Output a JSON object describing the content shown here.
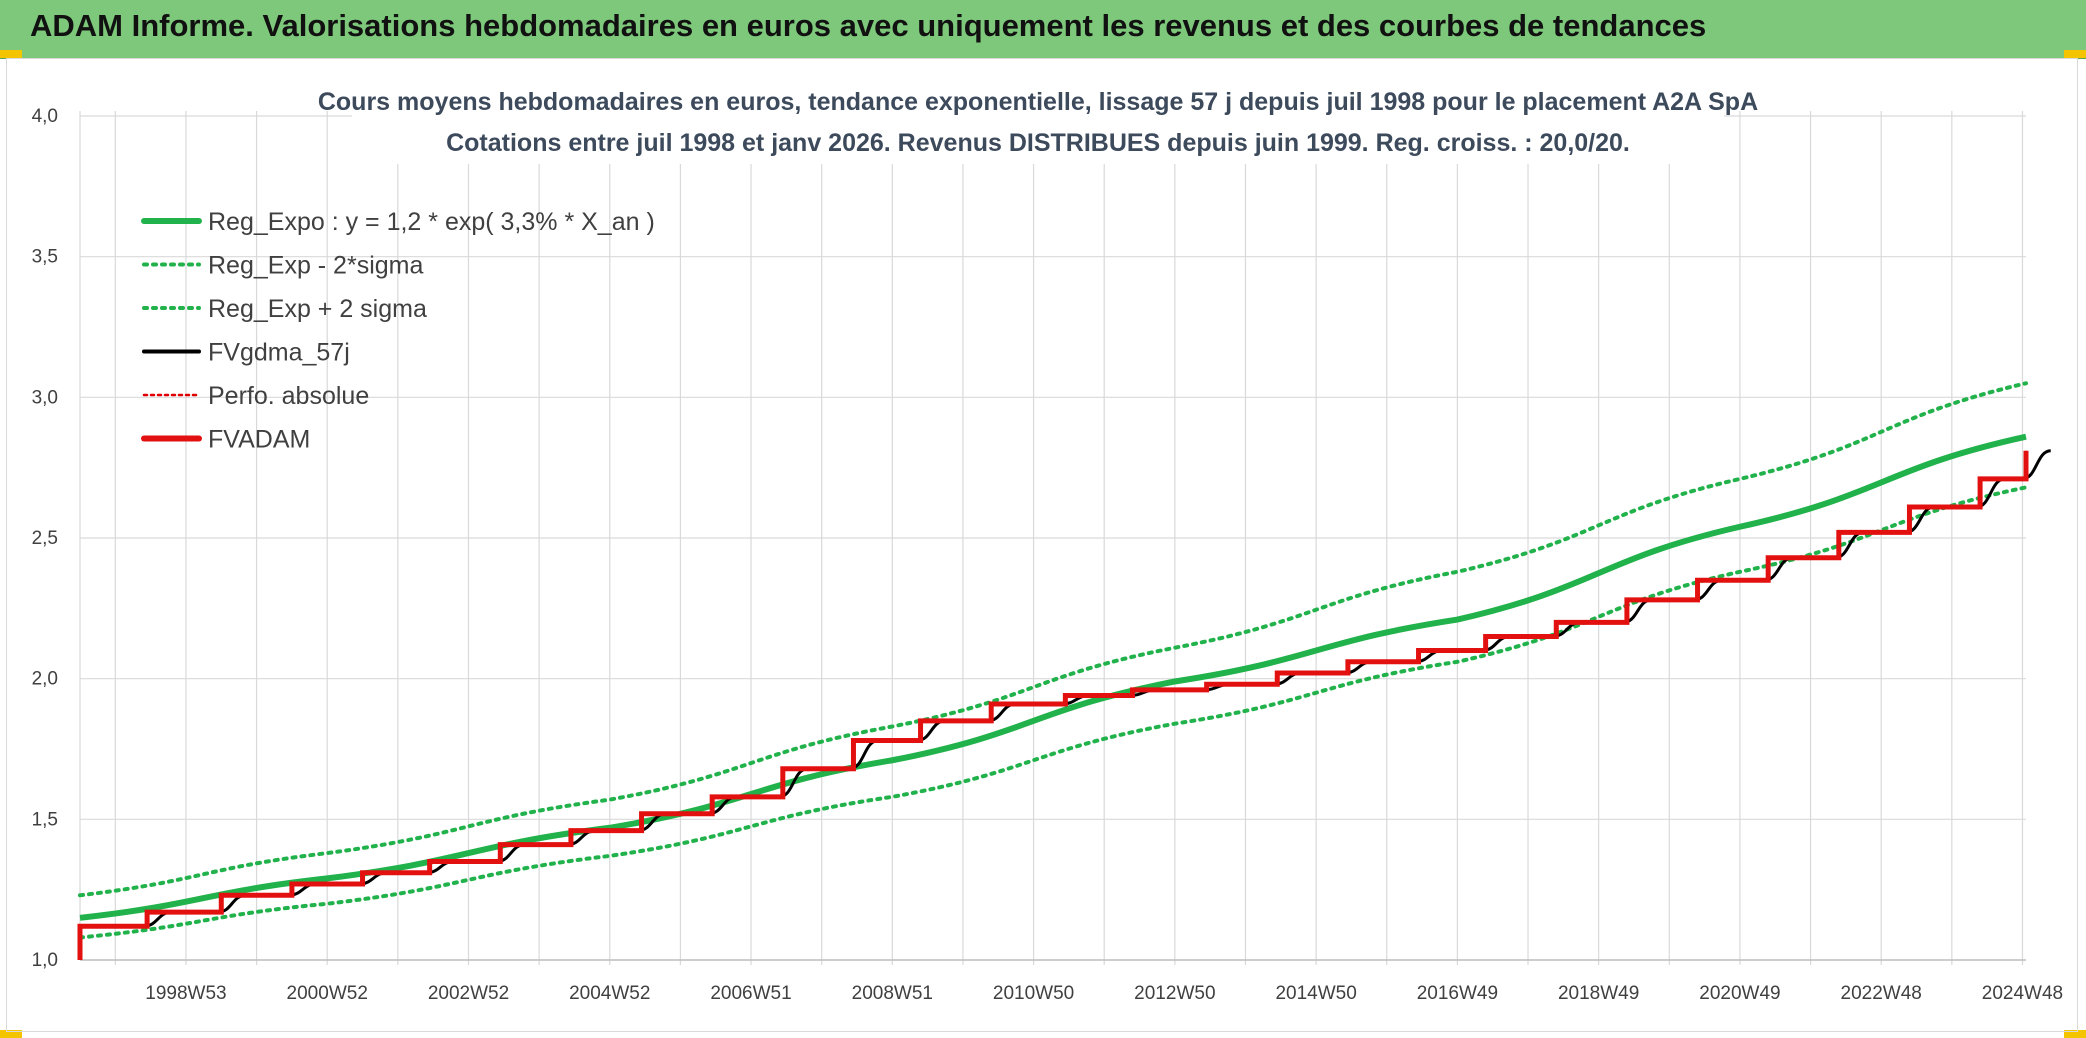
{
  "banner": {
    "title": "ADAM Informe. Valorisations hebdomadaires en euros avec uniquement les revenus et des courbes de tendances"
  },
  "colors": {
    "banner_bg": "#7dc87a",
    "reg_expo": "#21b24b",
    "fvgdma": "#000000",
    "perfo": "#e00000",
    "fvadam": "#e31010",
    "grid": "#d9d9d9",
    "title_text": "#3c4a5c"
  },
  "chart_data": {
    "type": "line",
    "title_line1": "Cours moyens hebdomadaires en euros, tendance exponentielle, lissage 57 j depuis juil 1998 pour le placement A2A SpA",
    "title_line2": "Cotations entre juil 1998 et janv 2026. Revenus DISTRIBUES depuis juin 1999. Reg. croiss. : 20,0/20.",
    "ylim": [
      1.0,
      4.0
    ],
    "yticks": [
      "1,0",
      "1,5",
      "2,0",
      "2,5",
      "3,0",
      "3,5",
      "4,0"
    ],
    "x_tick_labels": [
      "1998W53",
      "2000W52",
      "2002W52",
      "2004W52",
      "2006W51",
      "2008W51",
      "2010W50",
      "2012W50",
      "2014W50",
      "2016W49",
      "2018W49",
      "2020W49",
      "2022W48",
      "2024W48"
    ],
    "x_range_years": [
      1998.5,
      2026.05
    ],
    "grid": true,
    "legend_position": "top-left",
    "legend": [
      {
        "label": "Reg_Expo : y = 1,2 * exp( 3,3% *  X_an )",
        "style": "solid-thick",
        "color": "#21b24b"
      },
      {
        "label": "Reg_Exp - 2*sigma",
        "style": "dotted",
        "color": "#21b24b"
      },
      {
        "label": "Reg_Exp + 2 sigma",
        "style": "dotted",
        "color": "#21b24b"
      },
      {
        "label": "FVgdma_57j",
        "style": "solid",
        "color": "#000000"
      },
      {
        "label": "Perfo. absolue",
        "style": "dotted-thin",
        "color": "#e00000"
      },
      {
        "label": "FVADAM",
        "style": "solid-thick",
        "color": "#e31010"
      }
    ],
    "series": [
      {
        "name": "Reg_Expo : y = 1,2 * exp( 3,3% *  X_an )",
        "x": [
          1998.5,
          2002.0,
          2006.0,
          2010.0,
          2014.0,
          2018.0,
          2022.0,
          2026.05
        ],
        "y": [
          1.15,
          1.29,
          1.47,
          1.71,
          1.99,
          2.21,
          2.54,
          2.86
        ]
      },
      {
        "name": "Reg_Exp - 2*sigma",
        "x": [
          1998.5,
          2002.0,
          2006.0,
          2010.0,
          2014.0,
          2018.0,
          2022.0,
          2026.05
        ],
        "y": [
          1.08,
          1.2,
          1.37,
          1.58,
          1.84,
          2.06,
          2.38,
          2.68
        ]
      },
      {
        "name": "Reg_Exp + 2 sigma",
        "x": [
          1998.5,
          2002.0,
          2006.0,
          2010.0,
          2014.0,
          2018.0,
          2022.0,
          2026.05
        ],
        "y": [
          1.23,
          1.38,
          1.57,
          1.83,
          2.11,
          2.38,
          2.71,
          3.05
        ]
      },
      {
        "name": "FVADAM",
        "step_x": [
          1998.5,
          1999.45,
          2000.5,
          2001.5,
          2002.5,
          2003.45,
          2004.45,
          2005.45,
          2006.45,
          2007.45,
          2008.45,
          2009.45,
          2010.4,
          2011.4,
          2012.45,
          2013.4,
          2014.45,
          2015.45,
          2016.45,
          2017.45,
          2018.4,
          2019.4,
          2020.4,
          2021.4,
          2022.4,
          2023.4,
          2024.4,
          2025.4
        ],
        "step_y": [
          1.12,
          1.17,
          1.23,
          1.27,
          1.31,
          1.35,
          1.41,
          1.46,
          1.52,
          1.58,
          1.68,
          1.78,
          1.85,
          1.91,
          1.94,
          1.96,
          1.98,
          2.02,
          2.06,
          2.1,
          2.15,
          2.2,
          2.28,
          2.35,
          2.43,
          2.52,
          2.61,
          2.71,
          2.81
        ],
        "end_x": 2026.05
      },
      {
        "name": "FVgdma_57j",
        "note_smoothing": "smoothed version of FVADAM steps"
      }
    ]
  }
}
